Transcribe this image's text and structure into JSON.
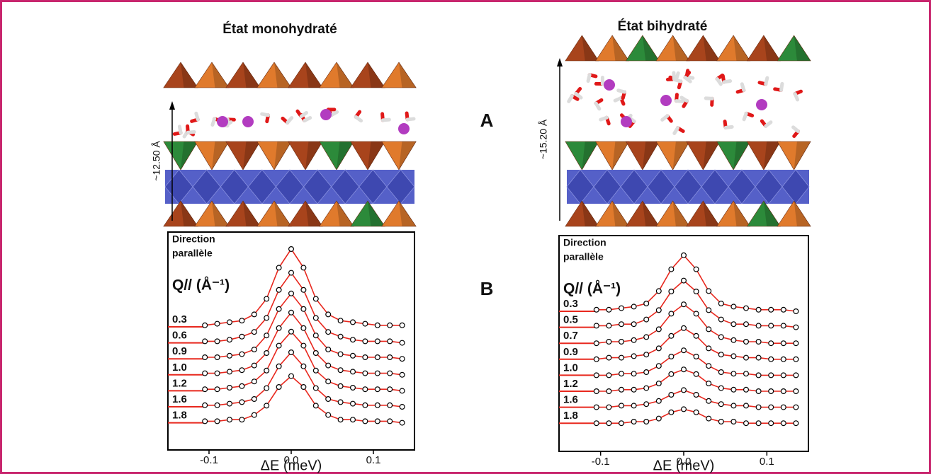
{
  "chart_data": [
    {
      "type": "line",
      "title": "État monohydraté",
      "annotation": [
        "Direction",
        "parallèle"
      ],
      "legend_title": "Q// (Å⁻¹)",
      "x_label": "ΔE (meV)",
      "xlim": [
        -0.15,
        0.15
      ],
      "xticks": [
        -0.1,
        {
          "value": 0,
          "label": "0.0"
        },
        0.1
      ],
      "x": [
        -0.105,
        -0.09,
        -0.075,
        -0.06,
        -0.045,
        -0.03,
        -0.015,
        0,
        0.015,
        0.03,
        0.045,
        0.06,
        0.075,
        0.09,
        0.105,
        0.12,
        0.135
      ],
      "series": [
        {
          "name": "0.3",
          "color": "#e8281e",
          "values": [
            0.1,
            0.2,
            0.3,
            0.4,
            0.8,
            1.8,
            3.8,
            5,
            3.8,
            1.8,
            0.8,
            0.4,
            0.3,
            0.2,
            0.1,
            0.1,
            0.1
          ]
        },
        {
          "name": "0.6",
          "color": "#e8281e",
          "values": [
            0.1,
            0.1,
            0.2,
            0.4,
            0.7,
            1.6,
            3.4,
            4.5,
            3.4,
            1.6,
            0.7,
            0.4,
            0.2,
            0.1,
            0.1,
            0.1,
            0
          ]
        },
        {
          "name": "0.9",
          "color": "#e8281e",
          "values": [
            0.1,
            0.1,
            0.2,
            0.3,
            0.6,
            1.5,
            3.2,
            4.2,
            3.2,
            1.5,
            0.6,
            0.3,
            0.2,
            0.1,
            0.1,
            0.1,
            0
          ]
        },
        {
          "name": "1.0",
          "color": "#e8281e",
          "values": [
            0.1,
            0.1,
            0.2,
            0.3,
            0.6,
            1.4,
            3,
            4,
            3,
            1.4,
            0.6,
            0.3,
            0.2,
            0.1,
            0.1,
            0.1,
            0
          ]
        },
        {
          "name": "1.2",
          "color": "#e8281e",
          "values": [
            0.1,
            0.1,
            0.2,
            0.3,
            0.6,
            1.3,
            2.9,
            3.8,
            2.9,
            1.3,
            0.6,
            0.3,
            0.2,
            0.1,
            0.1,
            0.1,
            0
          ]
        },
        {
          "name": "1.6",
          "color": "#e8281e",
          "values": [
            0.1,
            0.1,
            0.2,
            0.3,
            0.5,
            1.2,
            2.6,
            3.5,
            2.6,
            1.2,
            0.5,
            0.3,
            0.2,
            0.1,
            0.1,
            0.1,
            0
          ]
        },
        {
          "name": "1.8",
          "color": "#e8281e",
          "values": [
            0.1,
            0.1,
            0.2,
            0.2,
            0.5,
            1.1,
            2.3,
            3,
            2.3,
            1.1,
            0.5,
            0.2,
            0.2,
            0.1,
            0.1,
            0.1,
            0
          ]
        }
      ]
    },
    {
      "type": "line",
      "title": "État bihydraté",
      "annotation": [
        "Direction",
        "parallèle"
      ],
      "legend_title": "Q// (Å⁻¹)",
      "x_label": "ΔE (meV)",
      "xlim": [
        -0.15,
        0.15
      ],
      "xticks": [
        -0.1,
        {
          "value": 0,
          "label": "0.0"
        },
        0.1
      ],
      "x": [
        -0.105,
        -0.09,
        -0.075,
        -0.06,
        -0.045,
        -0.03,
        -0.015,
        0,
        0.015,
        0.03,
        0.045,
        0.06,
        0.075,
        0.09,
        0.105,
        0.12,
        0.135
      ],
      "series": [
        {
          "name": "0.3",
          "color": "#e8281e",
          "values": [
            0.1,
            0.1,
            0.2,
            0.3,
            0.5,
            1.3,
            2.7,
            3.6,
            2.7,
            1.3,
            0.5,
            0.3,
            0.2,
            0.1,
            0.1,
            0.1,
            0
          ]
        },
        {
          "name": "0.5",
          "color": "#e8281e",
          "values": [
            0.1,
            0.1,
            0.2,
            0.2,
            0.5,
            1.1,
            2.3,
            3,
            2.3,
            1.1,
            0.5,
            0.2,
            0.2,
            0.1,
            0.1,
            0.1,
            0
          ]
        },
        {
          "name": "0.7",
          "color": "#e8281e",
          "values": [
            0,
            0.1,
            0.1,
            0.2,
            0.4,
            0.9,
            1.9,
            2.5,
            1.9,
            0.9,
            0.4,
            0.2,
            0.1,
            0.1,
            0,
            0,
            0
          ]
        },
        {
          "name": "0.9",
          "color": "#e8281e",
          "values": [
            0,
            0.1,
            0.1,
            0.2,
            0.3,
            0.7,
            1.5,
            2,
            1.5,
            0.7,
            0.3,
            0.2,
            0.1,
            0.1,
            0,
            0,
            0
          ]
        },
        {
          "name": "1.0",
          "color": "#e8281e",
          "values": [
            0,
            0,
            0.1,
            0.1,
            0.2,
            0.6,
            1.2,
            1.6,
            1.2,
            0.6,
            0.2,
            0.1,
            0.1,
            0,
            0,
            0,
            0
          ]
        },
        {
          "name": "1.2",
          "color": "#e8281e",
          "values": [
            0,
            0,
            0.1,
            0.1,
            0.2,
            0.5,
            1.1,
            1.4,
            1.1,
            0.5,
            0.2,
            0.1,
            0.1,
            0,
            0,
            0,
            0
          ]
        },
        {
          "name": "1.6",
          "color": "#e8281e",
          "values": [
            0,
            0,
            0.1,
            0.1,
            0.2,
            0.4,
            0.8,
            1.1,
            0.8,
            0.4,
            0.2,
            0.1,
            0.1,
            0,
            0,
            0,
            0
          ]
        },
        {
          "name": "1.8",
          "color": "#e8281e",
          "values": [
            0,
            0,
            0,
            0.1,
            0.1,
            0.3,
            0.7,
            0.9,
            0.7,
            0.3,
            0.1,
            0.1,
            0,
            0,
            0,
            0,
            0
          ]
        }
      ]
    }
  ],
  "structures": [
    {
      "spacing": "~12.50 Å"
    },
    {
      "spacing": "~15.20 Å"
    }
  ],
  "panel_labels": [
    "A",
    "B"
  ]
}
